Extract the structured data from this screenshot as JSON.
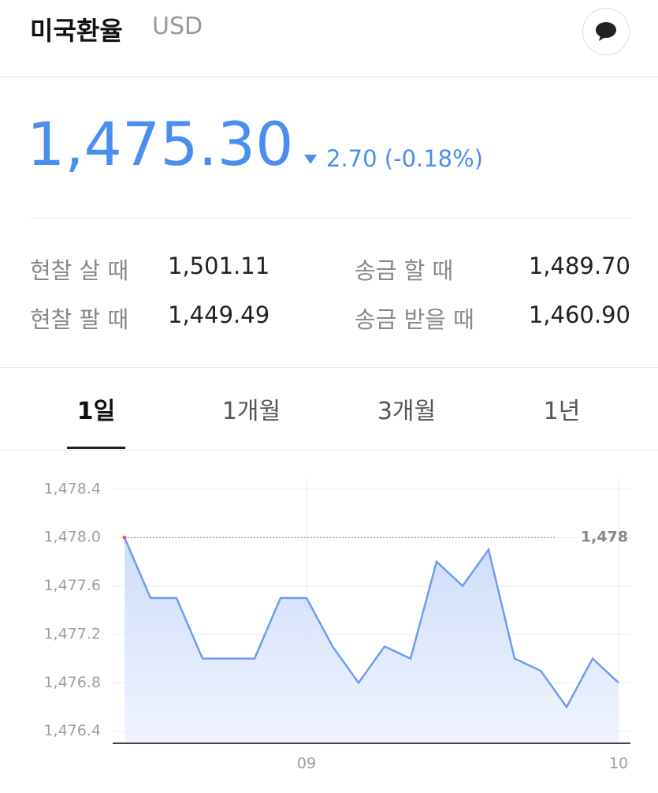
{
  "header": {
    "title": "미국환율",
    "code": "USD"
  },
  "quote": {
    "price": "1,475.30",
    "change": "2.70 (-0.18%)"
  },
  "rates": {
    "rows": [
      [
        "현찰 살 때",
        "1,501.11",
        "송금 할 때",
        "1,489.70"
      ],
      [
        "현찰 팔 때",
        "1,449.49",
        "송금 받을 때",
        "1,460.90"
      ]
    ]
  },
  "tabs": {
    "items": [
      "1일",
      "1개월",
      "3개월",
      "1년"
    ],
    "selected": 0
  },
  "chart_data": {
    "type": "area",
    "categories": [
      null,
      null,
      null,
      null,
      null,
      null,
      null,
      "09",
      null,
      null,
      null,
      null,
      null,
      null,
      null,
      null,
      null,
      null,
      null,
      "10"
    ],
    "values": [
      1478.0,
      1477.5,
      1477.5,
      1477.0,
      1477.0,
      1477.0,
      1477.5,
      1477.5,
      1477.1,
      1476.8,
      1477.1,
      1477.0,
      1477.8,
      1477.6,
      1477.9,
      1477.0,
      1476.9,
      1476.6,
      1477.0,
      1476.8
    ],
    "color": "#6d9cf0",
    "start_marker_color": "#e05a4e",
    "ylim": [
      1476.3,
      1478.5
    ],
    "yticks": [
      {
        "value": 1476.4,
        "label": "1,476.4"
      },
      {
        "value": 1476.8,
        "label": "1,476.8"
      },
      {
        "value": 1477.2,
        "label": "1,477.2"
      },
      {
        "value": 1477.6,
        "label": "1,477.6"
      },
      {
        "value": 1478.0,
        "label": "1,478.0"
      },
      {
        "value": 1478.4,
        "label": "1,478.4"
      }
    ],
    "grid": true,
    "reference_line": {
      "value": 1478,
      "label": "1,478"
    }
  }
}
